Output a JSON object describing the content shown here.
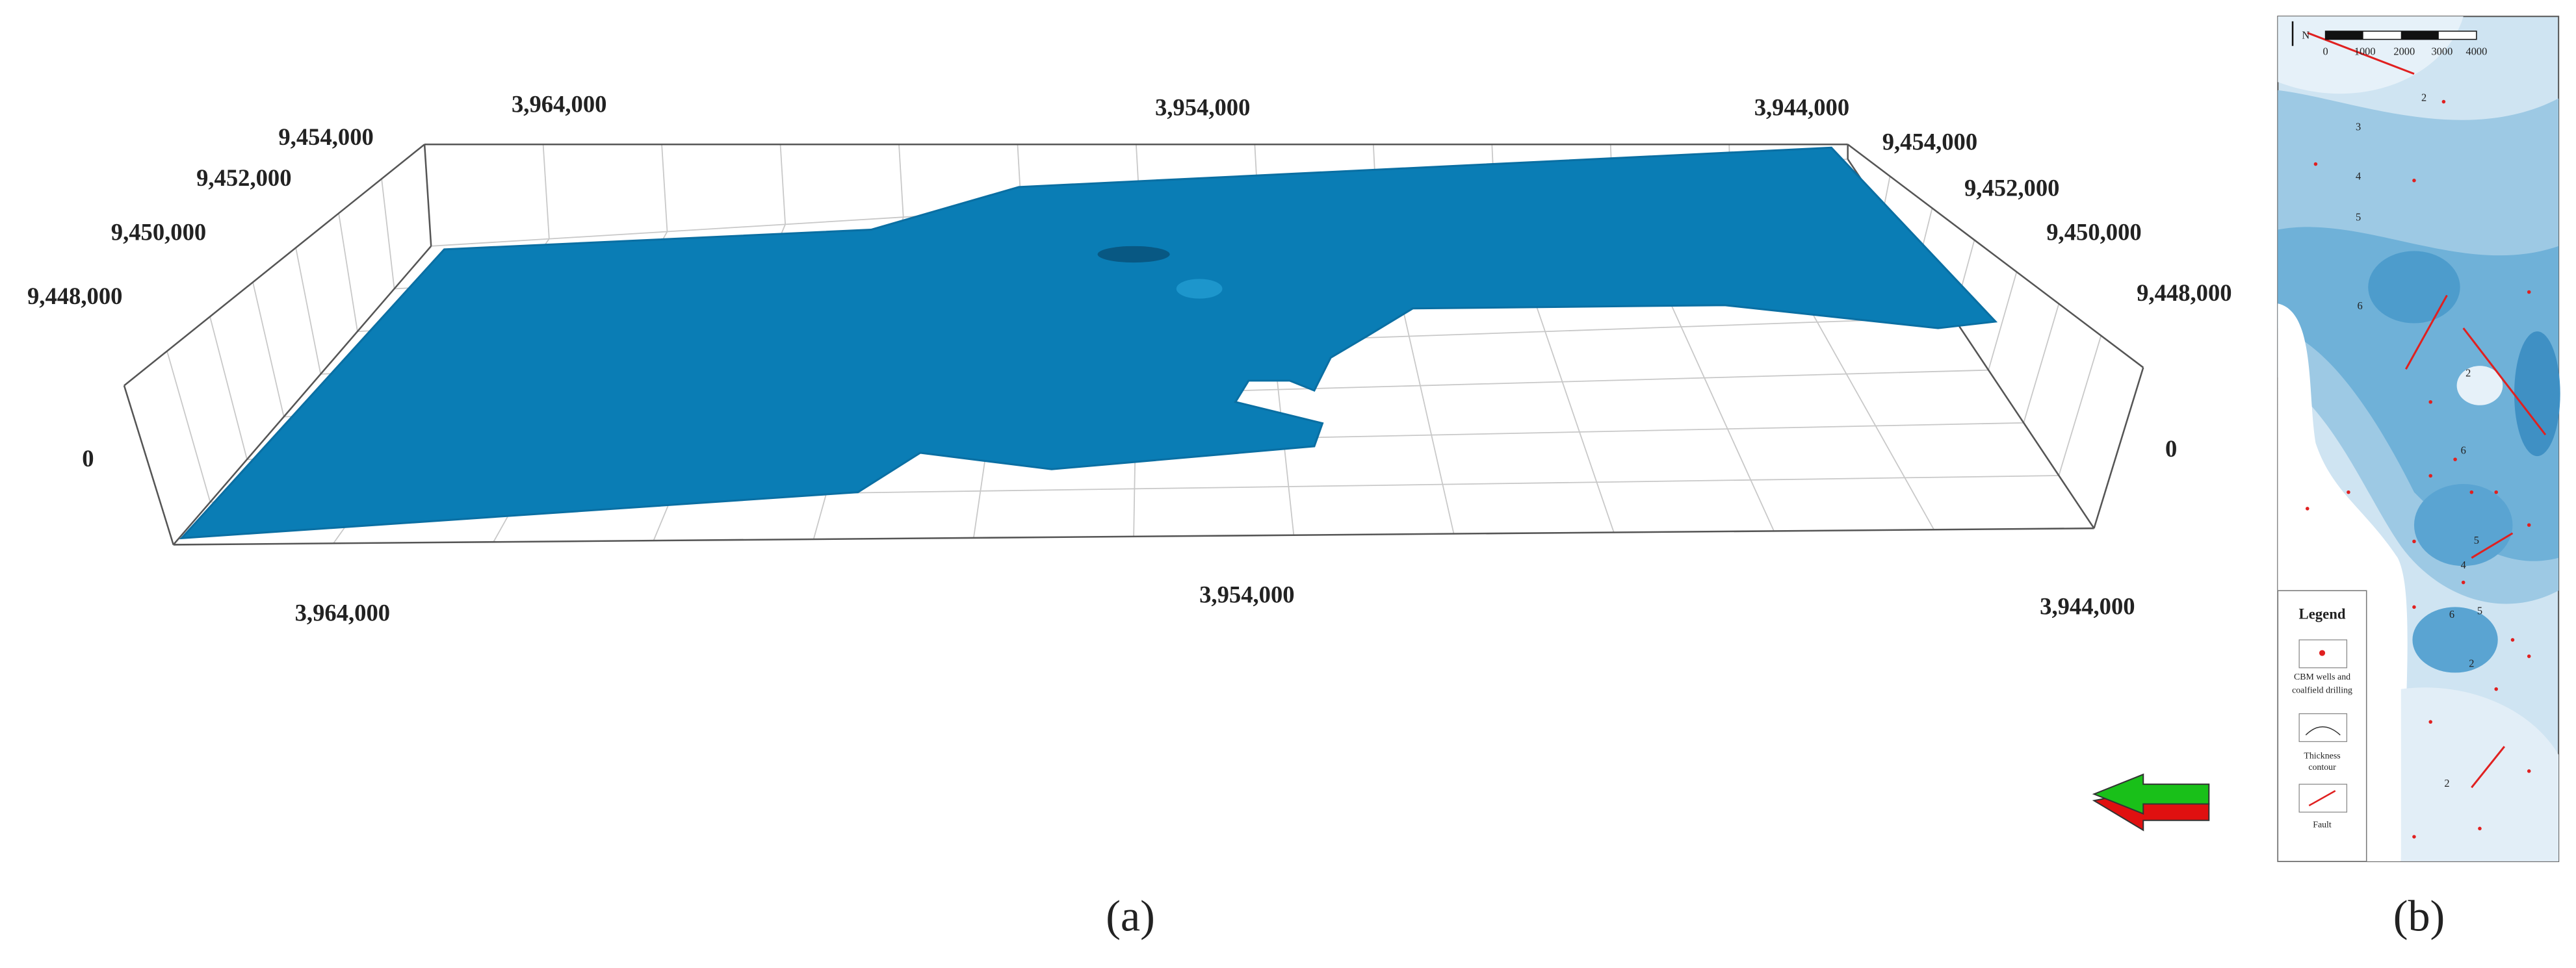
{
  "panel_a": {
    "caption": "(a)",
    "top_x": [
      "3,964,000",
      "3,954,000",
      "3,944,000"
    ],
    "bottom_x": [
      "3,964,000",
      "3,954,000",
      "3,944,000"
    ],
    "left_y": [
      "9,454,000",
      "9,452,000",
      "9,450,000",
      "9,448,000"
    ],
    "right_y": [
      "9,454,000",
      "9,452,000",
      "9,450,000",
      "9,448,000"
    ],
    "left_z": "0",
    "right_z": "0"
  },
  "panel_b": {
    "caption": "(b)",
    "north": "N",
    "scale": [
      "0",
      "1000",
      "2000",
      "3000",
      "4000"
    ],
    "contour_labels": [
      "2",
      "3",
      "4",
      "5",
      "6",
      "2",
      "6",
      "5",
      "4",
      "6",
      "5",
      "2",
      "2"
    ],
    "legend": {
      "title": "Legend",
      "items": [
        [
          "CBM wells and",
          "coalfield drilling"
        ],
        [
          "Thickness",
          "contour"
        ],
        [
          "Fault"
        ]
      ]
    }
  }
}
